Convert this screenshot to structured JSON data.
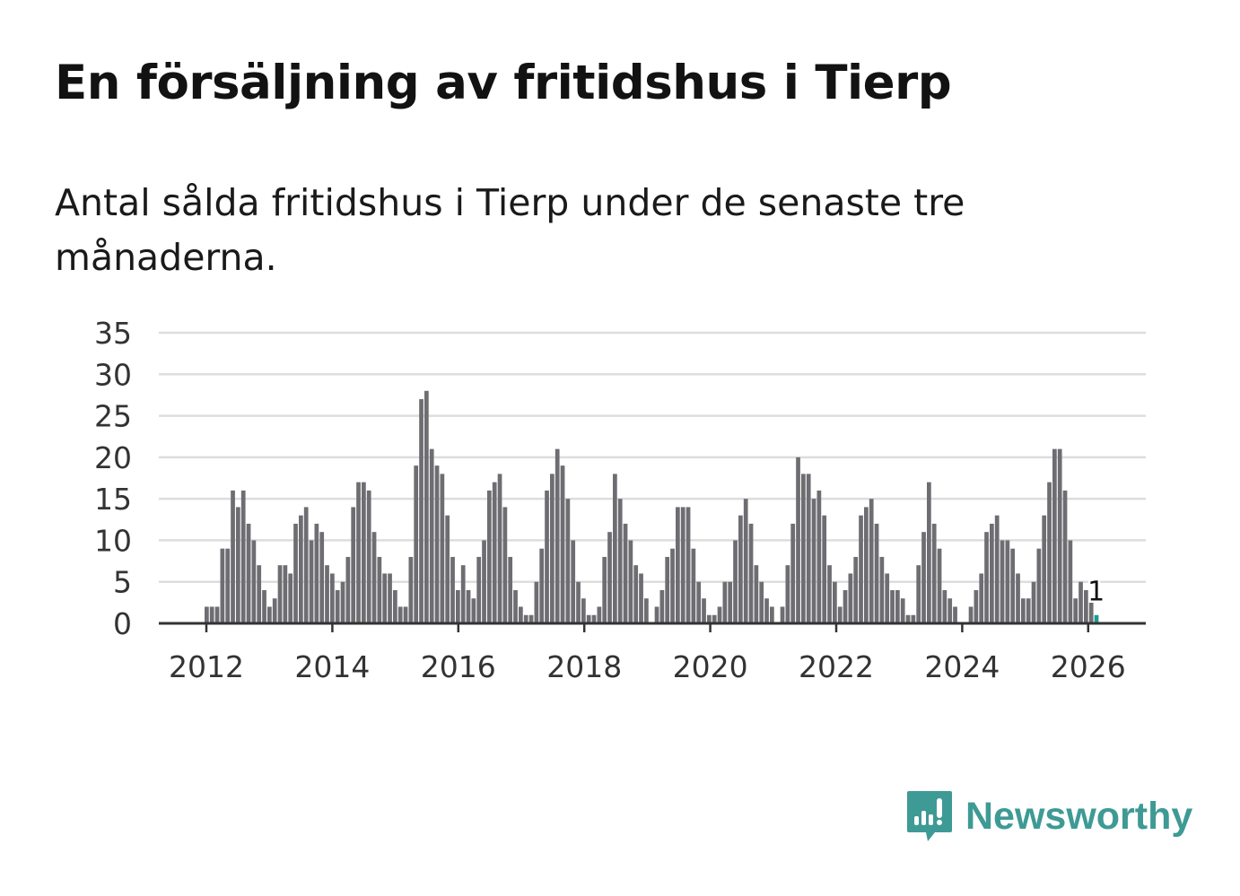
{
  "title": "En försäljning av fritidshus i Tierp",
  "subtitle": "Antal sålda fritidshus i Tierp under de senaste tre månaderna.",
  "brand": "Newsworthy",
  "colors": {
    "bar": "#6e6d72",
    "highlight": "#179e93",
    "grid": "#dddddd",
    "axis": "#333333",
    "brand": "#3e9a94"
  },
  "chart_data": {
    "type": "bar",
    "title": "En försäljning av fritidshus i Tierp",
    "xlabel": "",
    "ylabel": "",
    "ylim": [
      0,
      35
    ],
    "yticks": [
      "0",
      "5",
      "10",
      "15",
      "20",
      "25",
      "30",
      "35"
    ],
    "xticks": [
      "2012",
      "2014",
      "2016",
      "2018",
      "2020",
      "2022",
      "2024",
      "2026"
    ],
    "start": "2012-01",
    "frequency": "monthly",
    "values": [
      2,
      2,
      2,
      9,
      9,
      16,
      14,
      16,
      12,
      10,
      7,
      4,
      2,
      3,
      7,
      7,
      6,
      12,
      13,
      14,
      10,
      12,
      11,
      7,
      6,
      4,
      5,
      8,
      14,
      17,
      17,
      16,
      11,
      8,
      6,
      6,
      4,
      2,
      2,
      8,
      19,
      27,
      28,
      21,
      19,
      18,
      13,
      8,
      4,
      7,
      4,
      3,
      8,
      10,
      16,
      17,
      18,
      14,
      8,
      4,
      2,
      1,
      1,
      5,
      9,
      16,
      18,
      21,
      19,
      15,
      10,
      5,
      3,
      1,
      1,
      2,
      8,
      11,
      18,
      15,
      12,
      10,
      7,
      6,
      3,
      0,
      2,
      4,
      8,
      9,
      14,
      14,
      14,
      9,
      5,
      3,
      1,
      1,
      2,
      5,
      5,
      10,
      13,
      15,
      12,
      7,
      5,
      3,
      2,
      0,
      2,
      7,
      12,
      20,
      18,
      18,
      15,
      16,
      13,
      7,
      5,
      2,
      4,
      6,
      8,
      13,
      14,
      15,
      12,
      8,
      6,
      4,
      4,
      3,
      1,
      1,
      7,
      11,
      17,
      12,
      9,
      4,
      3,
      2,
      0,
      0,
      2,
      4,
      6,
      11,
      12,
      13,
      10,
      10,
      9,
      6,
      3,
      3,
      5,
      9,
      13,
      17,
      21,
      21,
      16,
      10,
      3,
      5,
      4,
      3,
      1
    ],
    "highlight_last": true,
    "last_label": "1",
    "grid": true
  }
}
